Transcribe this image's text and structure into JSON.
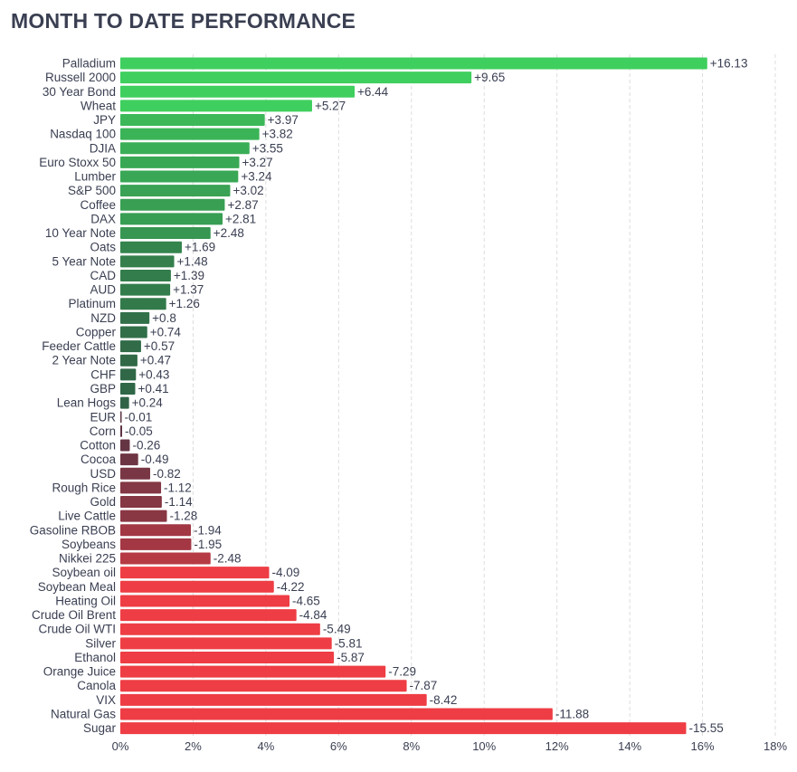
{
  "title": "MONTH TO DATE PERFORMANCE",
  "chart_data": {
    "type": "bar",
    "orientation": "horizontal",
    "title": "MONTH TO DATE PERFORMANCE",
    "xlabel": "",
    "ylabel": "",
    "xlim": [
      0,
      18
    ],
    "x_ticks": [
      "0%",
      "2%",
      "4%",
      "6%",
      "8%",
      "10%",
      "12%",
      "14%",
      "16%",
      "18%"
    ],
    "grid": "vertical dashed",
    "bar_length": "absolute value",
    "categories": [
      "Palladium",
      "Russell 2000",
      "30 Year Bond",
      "Wheat",
      "JPY",
      "Nasdaq 100",
      "DJIA",
      "Euro Stoxx 50",
      "Lumber",
      "S&P 500",
      "Coffee",
      "DAX",
      "10 Year Note",
      "Oats",
      "5 Year Note",
      "CAD",
      "AUD",
      "Platinum",
      "NZD",
      "Copper",
      "Feeder Cattle",
      "2 Year Note",
      "CHF",
      "GBP",
      "Lean Hogs",
      "EUR",
      "Corn",
      "Cotton",
      "Cocoa",
      "USD",
      "Rough Rice",
      "Gold",
      "Live Cattle",
      "Gasoline RBOB",
      "Soybeans",
      "Nikkei 225",
      "Soybean oil",
      "Soybean Meal",
      "Heating Oil",
      "Crude Oil Brent",
      "Crude Oil WTI",
      "Silver",
      "Ethanol",
      "Orange Juice",
      "Canola",
      "VIX",
      "Natural Gas",
      "Sugar"
    ],
    "values": [
      16.13,
      9.65,
      6.44,
      5.27,
      3.97,
      3.82,
      3.55,
      3.27,
      3.24,
      3.02,
      2.87,
      2.81,
      2.48,
      1.69,
      1.48,
      1.39,
      1.37,
      1.26,
      0.8,
      0.74,
      0.57,
      0.47,
      0.43,
      0.41,
      0.24,
      -0.01,
      -0.05,
      -0.26,
      -0.49,
      -0.82,
      -1.12,
      -1.14,
      -1.28,
      -1.94,
      -1.95,
      -2.48,
      -4.09,
      -4.22,
      -4.65,
      -4.84,
      -5.49,
      -5.81,
      -5.87,
      -7.29,
      -7.87,
      -8.42,
      -11.88,
      -15.55
    ],
    "value_labels": [
      "+16.13",
      "+9.65",
      "+6.44",
      "+5.27",
      "+3.97",
      "+3.82",
      "+3.55",
      "+3.27",
      "+3.24",
      "+3.02",
      "+2.87",
      "+2.81",
      "+2.48",
      "+1.69",
      "+1.48",
      "+1.39",
      "+1.37",
      "+1.26",
      "+0.8",
      "+0.74",
      "+0.57",
      "+0.47",
      "+0.43",
      "+0.41",
      "+0.24",
      "-0.01",
      "-0.05",
      "-0.26",
      "-0.49",
      "-0.82",
      "-1.12",
      "-1.14",
      "-1.28",
      "-1.94",
      "-1.95",
      "-2.48",
      "-4.09",
      "-4.22",
      "-4.65",
      "-4.84",
      "-5.49",
      "-5.81",
      "-5.87",
      "-7.29",
      "-7.87",
      "-8.42",
      "-11.88",
      "-15.55"
    ],
    "colors": {
      "strong_positive": "#3fcf5e",
      "weak_positive": "#2f5e45",
      "weak_negative": "#5b3444",
      "strong_negative": "#ee3d44",
      "grid": "#dddddd",
      "text": "#3a3f52"
    }
  }
}
